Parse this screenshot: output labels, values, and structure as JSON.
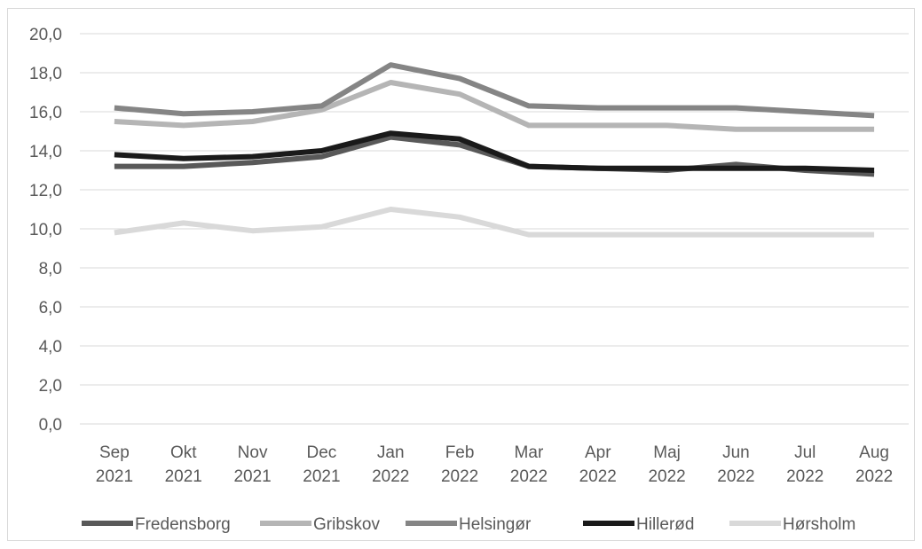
{
  "chart_data": {
    "type": "line",
    "title": "",
    "xlabel": "",
    "ylabel": "",
    "ylim": [
      0,
      20
    ],
    "y_ticks": [
      "0,0",
      "2,0",
      "4,0",
      "6,0",
      "8,0",
      "10,0",
      "12,0",
      "14,0",
      "16,0",
      "18,0",
      "20,0"
    ],
    "categories": [
      [
        "Sep",
        "2021"
      ],
      [
        "Okt",
        "2021"
      ],
      [
        "Nov",
        "2021"
      ],
      [
        "Dec",
        "2021"
      ],
      [
        "Jan",
        "2022"
      ],
      [
        "Feb",
        "2022"
      ],
      [
        "Mar",
        "2022"
      ],
      [
        "Apr",
        "2022"
      ],
      [
        "Maj",
        "2022"
      ],
      [
        "Jun",
        "2022"
      ],
      [
        "Jul",
        "2022"
      ],
      [
        "Aug",
        "2022"
      ]
    ],
    "grid": true,
    "legend_position": "bottom",
    "series": [
      {
        "name": "Fredensborg",
        "color": "#595959",
        "values": [
          13.2,
          13.2,
          13.4,
          13.7,
          14.7,
          14.3,
          13.2,
          13.1,
          13.0,
          13.3,
          13.0,
          12.8
        ]
      },
      {
        "name": "Gribskov",
        "color": "#b5b5b5",
        "values": [
          15.5,
          15.3,
          15.5,
          16.1,
          17.5,
          16.9,
          15.3,
          15.3,
          15.3,
          15.1,
          15.1,
          15.1
        ]
      },
      {
        "name": "Helsingør",
        "color": "#858585",
        "values": [
          16.2,
          15.9,
          16.0,
          16.3,
          18.4,
          17.7,
          16.3,
          16.2,
          16.2,
          16.2,
          16.0,
          15.8
        ]
      },
      {
        "name": "Hillerød",
        "color": "#1a1a1a",
        "values": [
          13.8,
          13.6,
          13.7,
          14.0,
          14.9,
          14.6,
          13.2,
          13.1,
          13.1,
          13.1,
          13.1,
          13.0
        ]
      },
      {
        "name": "Hørsholm",
        "color": "#d9d9d9",
        "values": [
          9.8,
          10.3,
          9.9,
          10.1,
          11.0,
          10.6,
          9.7,
          9.7,
          9.7,
          9.7,
          9.7,
          9.7
        ]
      }
    ]
  }
}
